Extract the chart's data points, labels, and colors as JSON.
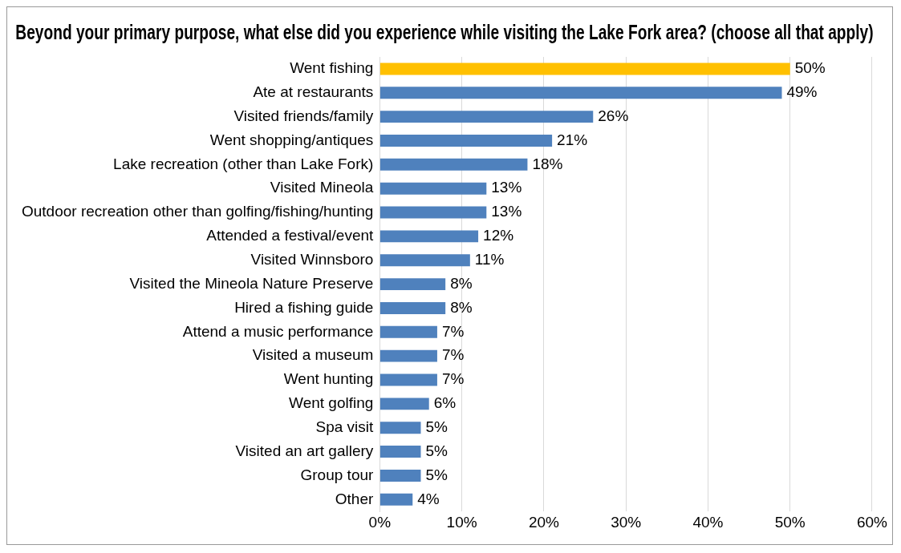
{
  "chart_data": {
    "type": "bar",
    "orientation": "horizontal",
    "title": "Beyond your primary purpose, what else did you experience while visiting the Lake Fork area? (choose all that apply)",
    "categories": [
      "Went fishing",
      "Ate at restaurants",
      "Visited friends/family",
      "Went shopping/antiques",
      "Lake recreation (other than Lake Fork)",
      "Visited Mineola",
      "Outdoor recreation other than golfing/fishing/hunting",
      "Attended a festival/event",
      "Visited Winnsboro",
      "Visited the Mineola Nature Preserve",
      "Hired a fishing guide",
      "Attend a music performance",
      "Visited a museum",
      "Went hunting",
      "Went golfing",
      "Spa visit",
      "Visited an art gallery",
      "Group tour",
      "Other"
    ],
    "values": [
      50,
      49,
      26,
      21,
      18,
      13,
      13,
      12,
      11,
      8,
      8,
      7,
      7,
      7,
      6,
      5,
      5,
      5,
      4
    ],
    "colors": [
      "#ffc000",
      "#4f81bd",
      "#4f81bd",
      "#4f81bd",
      "#4f81bd",
      "#4f81bd",
      "#4f81bd",
      "#4f81bd",
      "#4f81bd",
      "#4f81bd",
      "#4f81bd",
      "#4f81bd",
      "#4f81bd",
      "#4f81bd",
      "#4f81bd",
      "#4f81bd",
      "#4f81bd",
      "#4f81bd",
      "#4f81bd"
    ],
    "value_labels": [
      "50%",
      "49%",
      "26%",
      "21%",
      "18%",
      "13%",
      "13%",
      "12%",
      "11%",
      "8%",
      "8%",
      "7%",
      "7%",
      "7%",
      "6%",
      "5%",
      "5%",
      "5%",
      "4%"
    ],
    "xlim": [
      0,
      60
    ],
    "xticks": [
      {
        "value": 0,
        "label": "0%"
      },
      {
        "value": 10,
        "label": "10%"
      },
      {
        "value": 20,
        "label": "20%"
      },
      {
        "value": 30,
        "label": "30%"
      },
      {
        "value": 40,
        "label": "40%"
      },
      {
        "value": 50,
        "label": "50%"
      },
      {
        "value": 60,
        "label": "60%"
      }
    ],
    "grid": "x",
    "legend": false
  }
}
